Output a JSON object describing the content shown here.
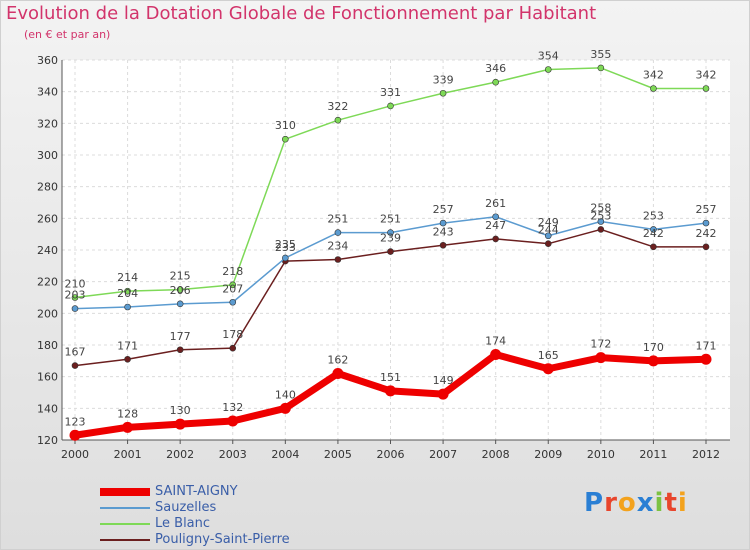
{
  "title": "Evolution de la Dotation Globale de Fonctionnement par Habitant",
  "subtitle": "(en € et par an)",
  "logo": "Proxiti",
  "chart_data": {
    "type": "line",
    "x": [
      "2000",
      "2001",
      "2002",
      "2003",
      "2004",
      "2005",
      "2006",
      "2007",
      "2008",
      "2009",
      "2010",
      "2011",
      "2012"
    ],
    "ylim": [
      120,
      360
    ],
    "yticks": [
      120,
      140,
      160,
      180,
      200,
      220,
      240,
      260,
      280,
      300,
      320,
      340,
      360
    ],
    "grid": true,
    "legend_placement": "bottom-left",
    "series": [
      {
        "name": "SAINT-AIGNY",
        "color": "#ee0000",
        "values": [
          123,
          128,
          130,
          132,
          140,
          162,
          151,
          149,
          174,
          165,
          172,
          170,
          171
        ]
      },
      {
        "name": "Sauzelles",
        "color": "#5b9bd0",
        "values": [
          203,
          204,
          206,
          207,
          235,
          251,
          251,
          257,
          261,
          249,
          258,
          253,
          257
        ]
      },
      {
        "name": "Le Blanc",
        "color": "#7ed957",
        "values": [
          210,
          214,
          215,
          218,
          310,
          322,
          331,
          339,
          346,
          354,
          355,
          342,
          342
        ]
      },
      {
        "name": "Pouligny-Saint-Pierre",
        "color": "#6b1f1f",
        "values": [
          167,
          171,
          177,
          178,
          233,
          234,
          239,
          243,
          247,
          244,
          253,
          242,
          242
        ]
      }
    ]
  }
}
